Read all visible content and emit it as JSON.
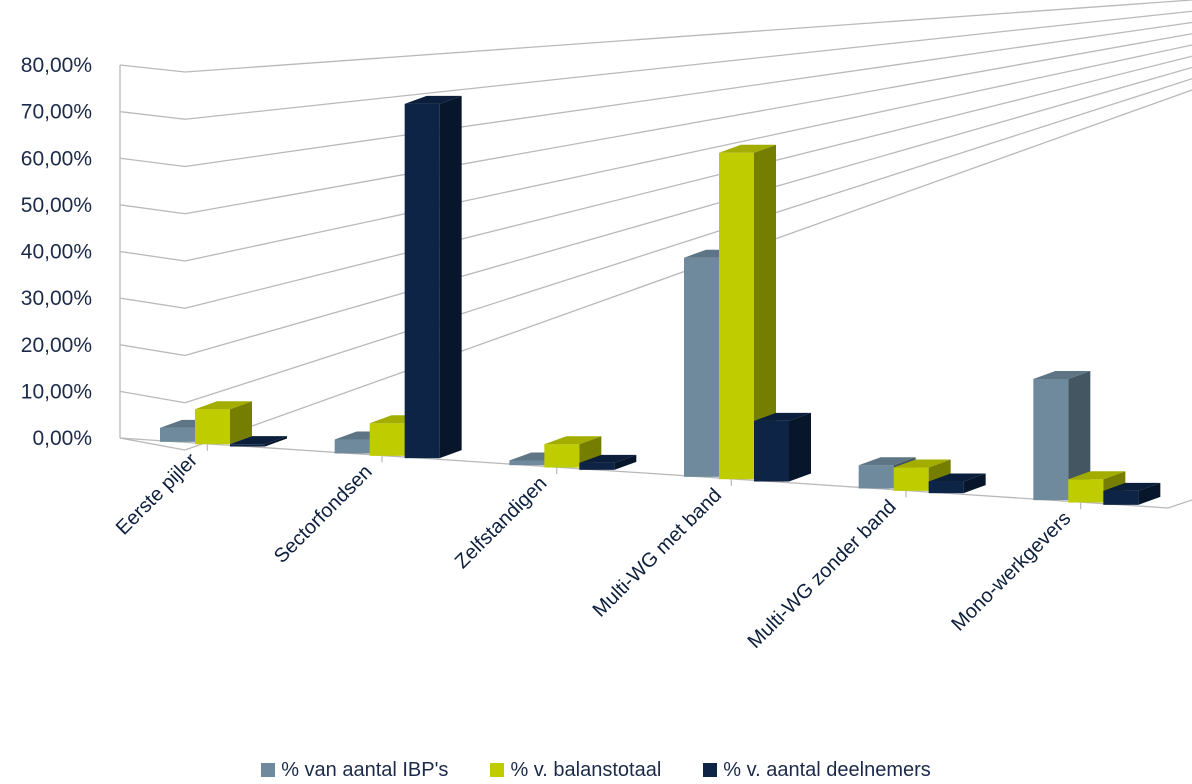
{
  "chart_data": {
    "type": "bar",
    "style": "3d-clustered-column",
    "categories": [
      "Eerste pijler",
      "Sectorfondsen",
      "Zelfstandigen",
      "Multi-WG met band",
      "Multi-WG zonder band",
      "Mono-werkgevers"
    ],
    "series": [
      {
        "name": "% van aantal IBP's",
        "color": "#6e8a9c",
        "values": [
          3,
          3,
          1,
          47,
          5,
          26
        ]
      },
      {
        "name": "% v. balanstotaal",
        "color": "#bfcc00",
        "values": [
          7.5,
          7,
          5,
          70,
          5,
          5
        ]
      },
      {
        "name": "% v. aantal deelnemers",
        "color": "#0d2447",
        "values": [
          0.5,
          76,
          1.5,
          13,
          2.5,
          3
        ]
      }
    ],
    "yticks": [
      "0,00%",
      "10,00%",
      "20,00%",
      "30,00%",
      "40,00%",
      "50,00%",
      "60,00%",
      "70,00%",
      "80,00%"
    ],
    "ylim": [
      0,
      80
    ],
    "grid": true,
    "legend_position": "bottom"
  }
}
